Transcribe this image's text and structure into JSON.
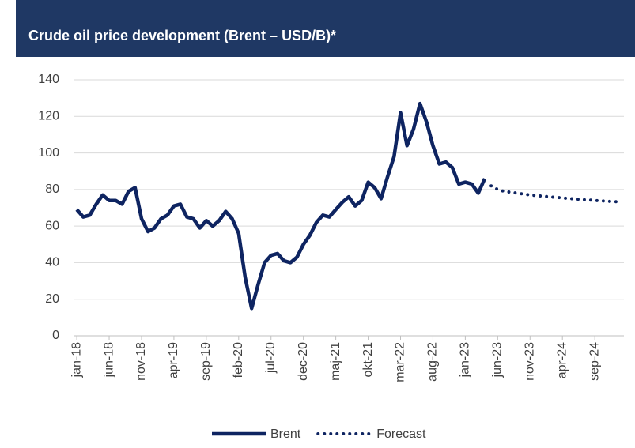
{
  "chart_data": {
    "type": "line",
    "title": "Crude oil price development (Brent – USD/B)*",
    "categories": [
      "jan-18",
      null,
      null,
      null,
      null,
      "jun-18",
      null,
      null,
      null,
      null,
      "nov-18",
      null,
      null,
      null,
      null,
      "apr-19",
      null,
      null,
      null,
      null,
      "sep-19",
      null,
      null,
      null,
      null,
      "feb-20",
      null,
      null,
      null,
      null,
      "jul-20",
      null,
      null,
      null,
      null,
      "dec-20",
      null,
      null,
      null,
      null,
      "maj-21",
      null,
      null,
      null,
      null,
      "okt-21",
      null,
      null,
      null,
      null,
      "mar-22",
      null,
      null,
      null,
      null,
      "aug-22",
      null,
      null,
      null,
      null,
      "jan-23",
      null,
      null,
      null,
      null,
      "jun-23",
      null,
      null,
      null,
      null,
      "nov-23",
      null,
      null,
      null,
      null,
      "apr-24",
      null,
      null,
      null,
      null,
      "sep-24",
      null,
      null,
      null,
      null
    ],
    "series": [
      {
        "name": "Brent",
        "color": "#0e2461",
        "dash": "solid",
        "values": [
          69,
          65,
          66,
          72,
          77,
          74,
          74,
          72,
          79,
          81,
          64,
          57,
          59,
          64,
          66,
          71,
          72,
          65,
          64,
          59,
          63,
          60,
          63,
          68,
          64,
          56,
          32,
          15,
          28,
          40,
          44,
          45,
          41,
          40,
          43,
          50,
          55,
          62,
          66,
          65,
          69,
          73,
          76,
          71,
          74,
          84,
          81,
          75,
          87,
          98,
          122,
          104,
          113,
          127,
          117,
          104,
          94,
          95,
          92,
          83,
          84,
          83,
          78,
          86,
          null,
          null,
          null,
          null,
          null,
          null,
          null,
          null,
          null,
          null,
          null,
          null,
          null,
          null,
          null,
          null,
          null,
          null,
          null,
          null,
          null
        ]
      },
      {
        "name": "Forecast",
        "color": "#0e2461",
        "dash": "dotted",
        "values": [
          null,
          null,
          null,
          null,
          null,
          null,
          null,
          null,
          null,
          null,
          null,
          null,
          null,
          null,
          null,
          null,
          null,
          null,
          null,
          null,
          null,
          null,
          null,
          null,
          null,
          null,
          null,
          null,
          null,
          null,
          null,
          null,
          null,
          null,
          null,
          null,
          null,
          null,
          null,
          null,
          null,
          null,
          null,
          null,
          null,
          null,
          null,
          null,
          null,
          null,
          null,
          null,
          null,
          null,
          null,
          null,
          null,
          null,
          null,
          null,
          null,
          null,
          null,
          null,
          82,
          80,
          79,
          78.5,
          78,
          77.5,
          77,
          76.7,
          76.3,
          76,
          75.7,
          75.4,
          75.1,
          74.8,
          74.5,
          74.3,
          74,
          73.8,
          73.6,
          73.4,
          73.2
        ]
      }
    ],
    "ylim": [
      0,
      140
    ],
    "yticks": [
      0,
      20,
      40,
      60,
      80,
      100,
      120,
      140
    ],
    "grid": true,
    "legend": "bottom"
  }
}
